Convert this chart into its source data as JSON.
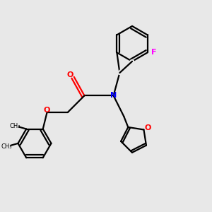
{
  "bg_color": "#e8e8e8",
  "bond_color": "#000000",
  "nitrogen_color": "#0000ff",
  "oxygen_color": "#ff0000",
  "fluorine_color": "#ff00ff",
  "line_width": 1.6,
  "fig_size": [
    3.0,
    3.0
  ],
  "dpi": 100,
  "xlim": [
    0,
    10
  ],
  "ylim": [
    0,
    10
  ]
}
